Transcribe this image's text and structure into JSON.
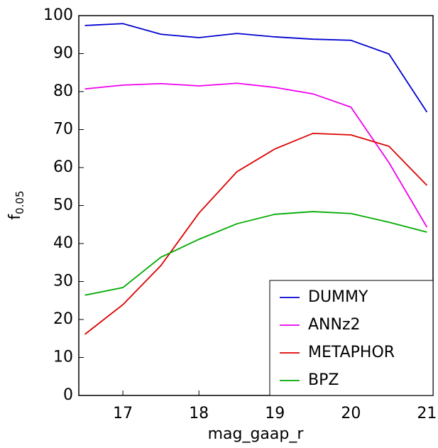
{
  "chart_data": {
    "type": "line",
    "xlabel": "mag_gaap_r",
    "ylabel": "f",
    "ylabel_sub": "0.05",
    "x": [
      16.5,
      17,
      17.5,
      18,
      18.5,
      19,
      19.5,
      20,
      20.5,
      21
    ],
    "series": [
      {
        "name": "DUMMY",
        "color": "#0000d0",
        "values": [
          97.4,
          97.9,
          95.1,
          94.2,
          95.3,
          94.4,
          93.8,
          93.5,
          89.9,
          74.6
        ]
      },
      {
        "name": "ANNz2",
        "color": "#ee00ee",
        "values": [
          80.7,
          81.7,
          82.1,
          81.5,
          82.2,
          81.1,
          79.4,
          75.9,
          61.3,
          44.3
        ]
      },
      {
        "name": "METAPHOR",
        "color": "#dd0000",
        "values": [
          16.1,
          23.9,
          34.2,
          48.0,
          58.9,
          64.9,
          69.0,
          68.6,
          65.6,
          55.3
        ]
      },
      {
        "name": "BPZ",
        "color": "#00aa00",
        "values": [
          26.4,
          28.4,
          36.4,
          41.1,
          45.2,
          47.7,
          48.4,
          47.9,
          45.6,
          43.0
        ]
      }
    ],
    "xlim": [
      16.42,
      21.08
    ],
    "xticks": [
      17,
      18,
      19,
      20,
      21
    ],
    "ylim": [
      0,
      100
    ],
    "yticks": [
      0,
      10,
      20,
      30,
      40,
      50,
      60,
      70,
      80,
      90,
      100
    ],
    "legend": "lower right"
  }
}
